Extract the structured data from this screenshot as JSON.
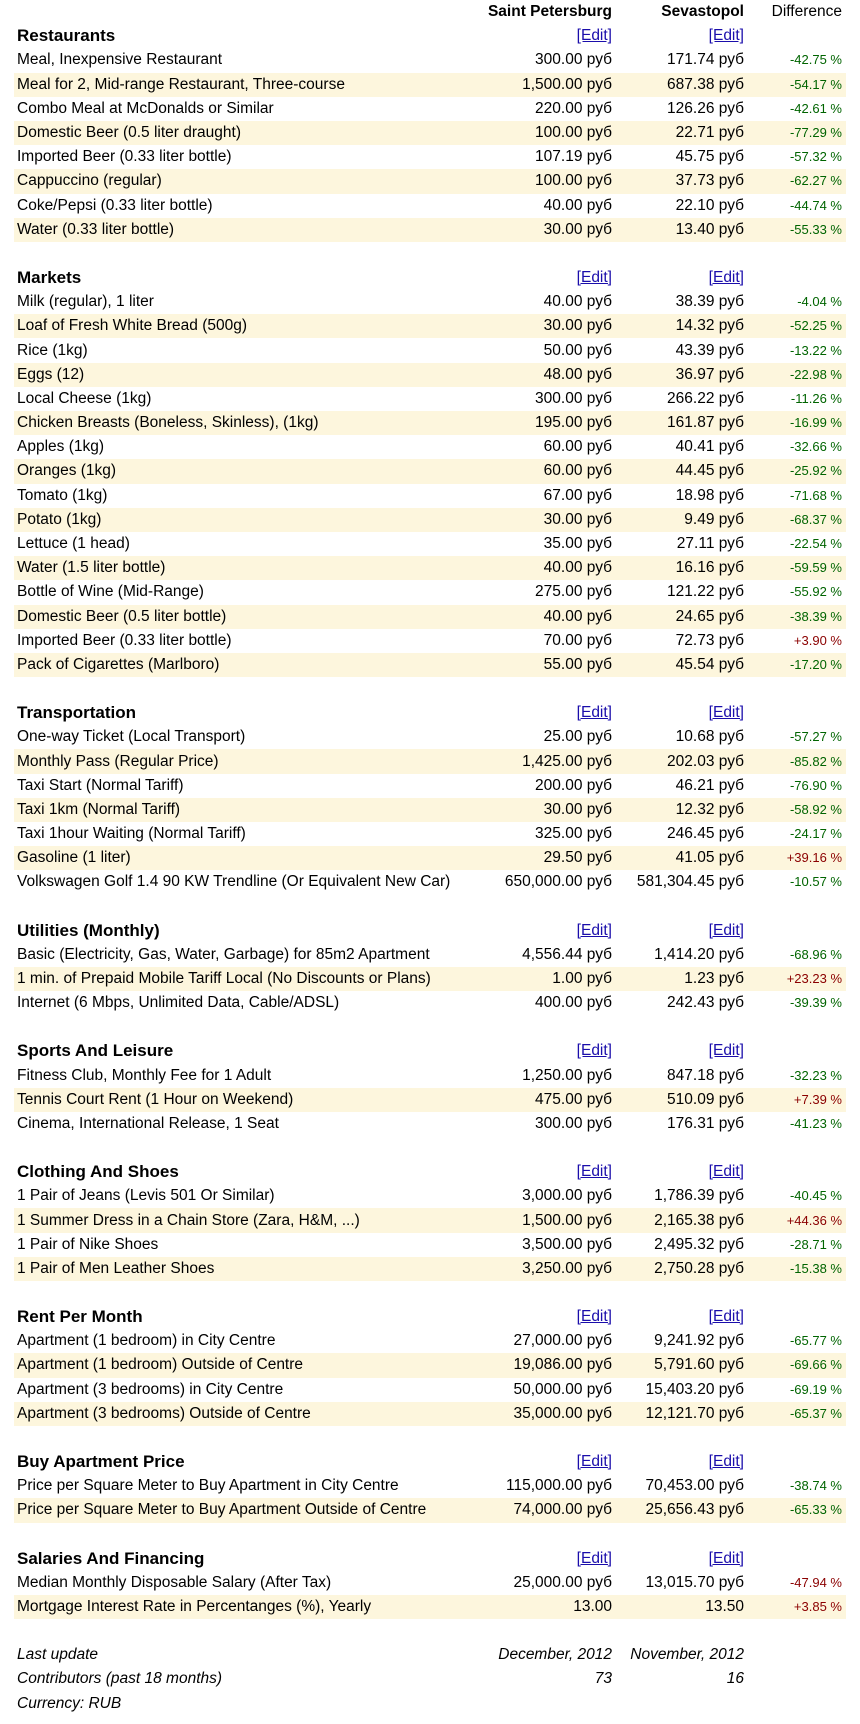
{
  "header": {
    "city1": "Saint Petersburg",
    "city2": "Sevastopol",
    "diff": "Difference"
  },
  "edit_label": "[Edit]",
  "sections": [
    {
      "title": "Restaurants",
      "edit1": true,
      "edit2": true,
      "rows": [
        {
          "name": "Meal, Inexpensive Restaurant",
          "v1": "300.00 руб",
          "v2": "171.74 руб",
          "diff": "-42.75 %",
          "sign": "neg"
        },
        {
          "name": "Meal for 2, Mid-range Restaurant, Three-course",
          "v1": "1,500.00 руб",
          "v2": "687.38 руб",
          "diff": "-54.17 %",
          "sign": "neg"
        },
        {
          "name": "Combo Meal at McDonalds or Similar",
          "v1": "220.00 руб",
          "v2": "126.26 руб",
          "diff": "-42.61 %",
          "sign": "neg"
        },
        {
          "name": "Domestic Beer (0.5 liter draught)",
          "v1": "100.00 руб",
          "v2": "22.71 руб",
          "diff": "-77.29 %",
          "sign": "neg"
        },
        {
          "name": "Imported Beer (0.33 liter bottle)",
          "v1": "107.19 руб",
          "v2": "45.75 руб",
          "diff": "-57.32 %",
          "sign": "neg"
        },
        {
          "name": "Cappuccino (regular)",
          "v1": "100.00 руб",
          "v2": "37.73 руб",
          "diff": "-62.27 %",
          "sign": "neg"
        },
        {
          "name": "Coke/Pepsi (0.33 liter bottle)",
          "v1": "40.00 руб",
          "v2": "22.10 руб",
          "diff": "-44.74 %",
          "sign": "neg"
        },
        {
          "name": "Water (0.33 liter bottle)",
          "v1": "30.00 руб",
          "v2": "13.40 руб",
          "diff": "-55.33 %",
          "sign": "neg"
        }
      ]
    },
    {
      "title": "Markets",
      "edit1": true,
      "edit2": true,
      "rows": [
        {
          "name": "Milk (regular), 1 liter",
          "v1": "40.00 руб",
          "v2": "38.39 руб",
          "diff": "-4.04 %",
          "sign": "neg"
        },
        {
          "name": "Loaf of Fresh White Bread (500g)",
          "v1": "30.00 руб",
          "v2": "14.32 руб",
          "diff": "-52.25 %",
          "sign": "neg"
        },
        {
          "name": "Rice (1kg)",
          "v1": "50.00 руб",
          "v2": "43.39 руб",
          "diff": "-13.22 %",
          "sign": "neg"
        },
        {
          "name": "Eggs (12)",
          "v1": "48.00 руб",
          "v2": "36.97 руб",
          "diff": "-22.98 %",
          "sign": "neg"
        },
        {
          "name": "Local Cheese (1kg)",
          "v1": "300.00 руб",
          "v2": "266.22 руб",
          "diff": "-11.26 %",
          "sign": "neg"
        },
        {
          "name": "Chicken Breasts (Boneless, Skinless), (1kg)",
          "v1": "195.00 руб",
          "v2": "161.87 руб",
          "diff": "-16.99 %",
          "sign": "neg"
        },
        {
          "name": "Apples (1kg)",
          "v1": "60.00 руб",
          "v2": "40.41 руб",
          "diff": "-32.66 %",
          "sign": "neg"
        },
        {
          "name": "Oranges (1kg)",
          "v1": "60.00 руб",
          "v2": "44.45 руб",
          "diff": "-25.92 %",
          "sign": "neg"
        },
        {
          "name": "Tomato (1kg)",
          "v1": "67.00 руб",
          "v2": "18.98 руб",
          "diff": "-71.68 %",
          "sign": "neg"
        },
        {
          "name": "Potato (1kg)",
          "v1": "30.00 руб",
          "v2": "9.49 руб",
          "diff": "-68.37 %",
          "sign": "neg"
        },
        {
          "name": "Lettuce (1 head)",
          "v1": "35.00 руб",
          "v2": "27.11 руб",
          "diff": "-22.54 %",
          "sign": "neg"
        },
        {
          "name": "Water (1.5 liter bottle)",
          "v1": "40.00 руб",
          "v2": "16.16 руб",
          "diff": "-59.59 %",
          "sign": "neg"
        },
        {
          "name": "Bottle of Wine (Mid-Range)",
          "v1": "275.00 руб",
          "v2": "121.22 руб",
          "diff": "-55.92 %",
          "sign": "neg"
        },
        {
          "name": "Domestic Beer (0.5 liter bottle)",
          "v1": "40.00 руб",
          "v2": "24.65 руб",
          "diff": "-38.39 %",
          "sign": "neg"
        },
        {
          "name": "Imported Beer (0.33 liter bottle)",
          "v1": "70.00 руб",
          "v2": "72.73 руб",
          "diff": "+3.90 %",
          "sign": "pos"
        },
        {
          "name": "Pack of Cigarettes (Marlboro)",
          "v1": "55.00 руб",
          "v2": "45.54 руб",
          "diff": "-17.20 %",
          "sign": "neg"
        }
      ]
    },
    {
      "title": "Transportation",
      "edit1": true,
      "edit2": true,
      "rows": [
        {
          "name": "One-way Ticket (Local Transport)",
          "v1": "25.00 руб",
          "v2": "10.68 руб",
          "diff": "-57.27 %",
          "sign": "neg"
        },
        {
          "name": "Monthly Pass (Regular Price)",
          "v1": "1,425.00 руб",
          "v2": "202.03 руб",
          "diff": "-85.82 %",
          "sign": "neg"
        },
        {
          "name": "Taxi Start (Normal Tariff)",
          "v1": "200.00 руб",
          "v2": "46.21 руб",
          "diff": "-76.90 %",
          "sign": "neg"
        },
        {
          "name": "Taxi 1km (Normal Tariff)",
          "v1": "30.00 руб",
          "v2": "12.32 руб",
          "diff": "-58.92 %",
          "sign": "neg"
        },
        {
          "name": "Taxi 1hour Waiting (Normal Tariff)",
          "v1": "325.00 руб",
          "v2": "246.45 руб",
          "diff": "-24.17 %",
          "sign": "neg"
        },
        {
          "name": "Gasoline (1 liter)",
          "v1": "29.50 руб",
          "v2": "41.05 руб",
          "diff": "+39.16 %",
          "sign": "pos"
        },
        {
          "name": "Volkswagen Golf 1.4 90 KW Trendline (Or Equivalent New Car)",
          "v1": "650,000.00 руб",
          "v2": "581,304.45 руб",
          "diff": "-10.57 %",
          "sign": "neg"
        }
      ]
    },
    {
      "title": "Utilities (Monthly)",
      "edit1": true,
      "edit2": true,
      "rows": [
        {
          "name": "Basic (Electricity, Gas, Water, Garbage) for 85m2 Apartment",
          "v1": "4,556.44 руб",
          "v2": "1,414.20 руб",
          "diff": "-68.96 %",
          "sign": "neg"
        },
        {
          "name": "1 min. of Prepaid Mobile Tariff Local (No Discounts or Plans)",
          "v1": "1.00 руб",
          "v2": "1.23 руб",
          "diff": "+23.23 %",
          "sign": "pos"
        },
        {
          "name": "Internet (6 Mbps, Unlimited Data, Cable/ADSL)",
          "v1": "400.00 руб",
          "v2": "242.43 руб",
          "diff": "-39.39 %",
          "sign": "neg"
        }
      ]
    },
    {
      "title": "Sports And Leisure",
      "edit1": true,
      "edit2": true,
      "rows": [
        {
          "name": "Fitness Club, Monthly Fee for 1 Adult",
          "v1": "1,250.00 руб",
          "v2": "847.18 руб",
          "diff": "-32.23 %",
          "sign": "neg"
        },
        {
          "name": "Tennis Court Rent (1 Hour on Weekend)",
          "v1": "475.00 руб",
          "v2": "510.09 руб",
          "diff": "+7.39 %",
          "sign": "pos"
        },
        {
          "name": "Cinema, International Release, 1 Seat",
          "v1": "300.00 руб",
          "v2": "176.31 руб",
          "diff": "-41.23 %",
          "sign": "neg"
        }
      ]
    },
    {
      "title": "Clothing And Shoes",
      "edit1": true,
      "edit2": true,
      "rows": [
        {
          "name": "1 Pair of Jeans (Levis 501 Or Similar)",
          "v1": "3,000.00 руб",
          "v2": "1,786.39 руб",
          "diff": "-40.45 %",
          "sign": "neg"
        },
        {
          "name": "1 Summer Dress in a Chain Store (Zara, H&M, ...)",
          "v1": "1,500.00 руб",
          "v2": "2,165.38 руб",
          "diff": "+44.36 %",
          "sign": "pos"
        },
        {
          "name": "1 Pair of Nike Shoes",
          "v1": "3,500.00 руб",
          "v2": "2,495.32 руб",
          "diff": "-28.71 %",
          "sign": "neg"
        },
        {
          "name": "1 Pair of Men Leather Shoes",
          "v1": "3,250.00 руб",
          "v2": "2,750.28 руб",
          "diff": "-15.38 %",
          "sign": "neg"
        }
      ]
    },
    {
      "title": "Rent Per Month",
      "edit1": true,
      "edit2": true,
      "rows": [
        {
          "name": "Apartment (1 bedroom) in City Centre",
          "v1": "27,000.00 руб",
          "v2": "9,241.92 руб",
          "diff": "-65.77 %",
          "sign": "neg"
        },
        {
          "name": "Apartment (1 bedroom) Outside of Centre",
          "v1": "19,086.00 руб",
          "v2": "5,791.60 руб",
          "diff": "-69.66 %",
          "sign": "neg"
        },
        {
          "name": "Apartment (3 bedrooms) in City Centre",
          "v1": "50,000.00 руб",
          "v2": "15,403.20 руб",
          "diff": "-69.19 %",
          "sign": "neg"
        },
        {
          "name": "Apartment (3 bedrooms) Outside of Centre",
          "v1": "35,000.00 руб",
          "v2": "12,121.70 руб",
          "diff": "-65.37 %",
          "sign": "neg"
        }
      ]
    },
    {
      "title": "Buy Apartment Price",
      "edit1": true,
      "edit2": true,
      "rows": [
        {
          "name": "Price per Square Meter to Buy Apartment in City Centre",
          "v1": "115,000.00 руб",
          "v2": "70,453.00 руб",
          "diff": "-38.74 %",
          "sign": "neg"
        },
        {
          "name": "Price per Square Meter to Buy Apartment Outside of Centre",
          "v1": "74,000.00 руб",
          "v2": "25,656.43 руб",
          "diff": "-65.33 %",
          "sign": "neg"
        }
      ]
    },
    {
      "title": "Salaries And Financing",
      "edit1": true,
      "edit2": true,
      "rows": [
        {
          "name": "Median Monthly Disposable Salary (After Tax)",
          "v1": "25,000.00 руб",
          "v2": "13,015.70 руб",
          "diff": "-47.94 %",
          "sign": "pos"
        },
        {
          "name": "Mortgage Interest Rate in Percentanges (%), Yearly",
          "v1": "13.00",
          "v2": "13.50",
          "diff": "+3.85 %",
          "sign": "pos"
        }
      ]
    }
  ],
  "footer": {
    "last_update_label": "Last update",
    "last_update_1": "December, 2012",
    "last_update_2": "November, 2012",
    "contributors_label": "Contributors (past 18 months)",
    "contributors_1": "73",
    "contributors_2": "16",
    "currency_label": "Currency: RUB"
  }
}
